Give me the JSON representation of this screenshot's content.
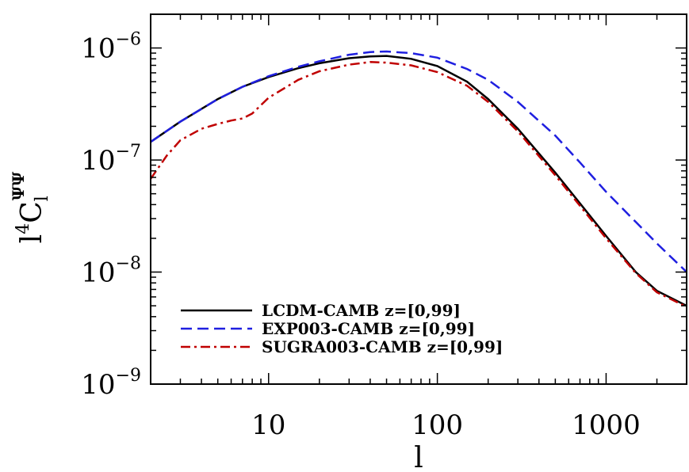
{
  "chart_data": {
    "type": "line",
    "xscale": "log",
    "yscale": "log",
    "xlim": [
      2,
      3000
    ],
    "ylim": [
      1e-09,
      2e-06
    ],
    "xticks": [
      10,
      100,
      1000
    ],
    "xtick_labels": [
      "10",
      "100",
      "1000"
    ],
    "yticks": [
      1e-09,
      1e-08,
      1e-07,
      1e-06
    ],
    "ytick_labels": [
      {
        "base": "10",
        "exp": "−9"
      },
      {
        "base": "10",
        "exp": "−8"
      },
      {
        "base": "10",
        "exp": "−7"
      },
      {
        "base": "10",
        "exp": "−6"
      }
    ],
    "xlabel": "l",
    "ylabel": {
      "l": "l",
      "four": "4",
      "C": "C",
      "sub": "l",
      "sup": "ΨΨ"
    },
    "grid": false,
    "legend_position": "bottom-left",
    "series": [
      {
        "name": "LCDM-CAMB z=[0,99]",
        "color": "#000000",
        "dash": "solid",
        "x": [
          2,
          3,
          5,
          7,
          10,
          15,
          20,
          30,
          40,
          50,
          70,
          100,
          150,
          200,
          300,
          500,
          700,
          1000,
          1500,
          2000,
          3000
        ],
        "y": [
          1.45e-07,
          2.2e-07,
          3.5e-07,
          4.5e-07,
          5.5e-07,
          6.6e-07,
          7.3e-07,
          8.1e-07,
          8.4e-07,
          8.5e-07,
          8e-07,
          6.9e-07,
          5e-07,
          3.5e-07,
          1.9e-07,
          7.7e-08,
          4.1e-08,
          2.1e-08,
          1e-08,
          6.8e-09,
          5e-09
        ]
      },
      {
        "name": "EXP003-CAMB z=[0,99]",
        "color": "#1f1fe0",
        "dash": "dashed",
        "x": [
          2,
          3,
          5,
          7,
          10,
          15,
          20,
          30,
          40,
          50,
          70,
          100,
          150,
          200,
          300,
          500,
          700,
          1000,
          1500,
          2000,
          3000
        ],
        "y": [
          1.45e-07,
          2.2e-07,
          3.5e-07,
          4.5e-07,
          5.6e-07,
          6.8e-07,
          7.6e-07,
          8.7e-07,
          9.2e-07,
          9.3e-07,
          9e-07,
          8.2e-07,
          6.5e-07,
          5.2e-07,
          3.3e-07,
          1.65e-07,
          9.5e-08,
          5.2e-08,
          2.8e-08,
          1.8e-08,
          1e-08
        ]
      },
      {
        "name": "SUGRA003-CAMB z=[0,99]",
        "color": "#c00000",
        "dash": "dashdot",
        "x": [
          2,
          2.5,
          3,
          4,
          5,
          6,
          7,
          8,
          10,
          15,
          20,
          30,
          40,
          50,
          70,
          100,
          150,
          200,
          300,
          500,
          700,
          1000,
          1500,
          2000,
          3000
        ],
        "y": [
          6.8e-08,
          1.1e-07,
          1.5e-07,
          1.9e-07,
          2.1e-07,
          2.25e-07,
          2.35e-07,
          2.6e-07,
          3.6e-07,
          5.2e-07,
          6.2e-07,
          7.1e-07,
          7.5e-07,
          7.4e-07,
          7e-07,
          6.1e-07,
          4.6e-07,
          3.3e-07,
          1.8e-07,
          7.3e-08,
          3.9e-08,
          2e-08,
          9.8e-09,
          6.6e-09,
          4.9e-09
        ]
      }
    ]
  }
}
